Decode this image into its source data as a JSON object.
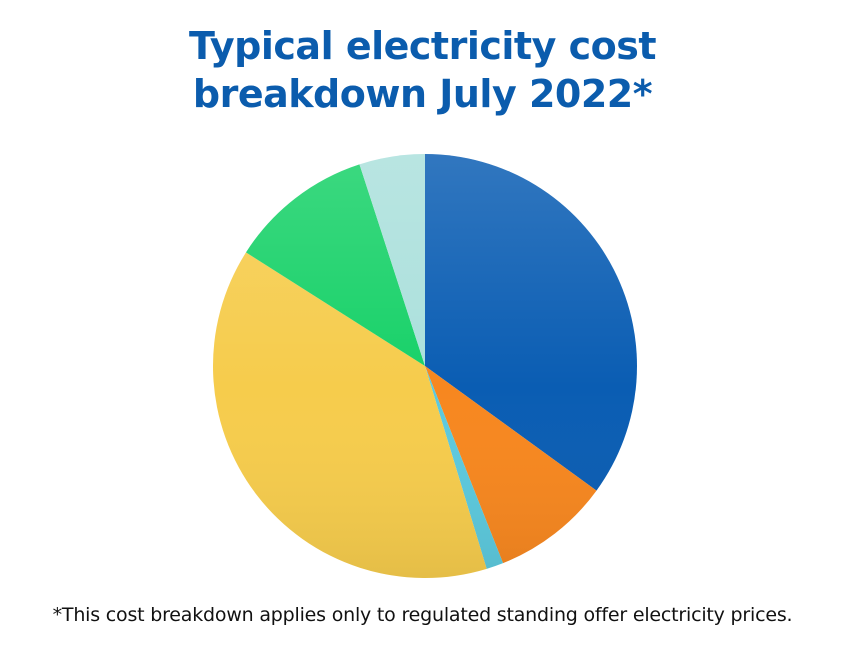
{
  "chart_data": {
    "type": "pie",
    "title_lines": [
      "Typical electricity cost",
      "breakdown July 2022*"
    ],
    "footnote": "*This cost breakdown applies only to regulated standing offer electricity prices.",
    "start": "12 o'clock",
    "direction": "clockwise",
    "values": [
      35.0,
      9.0,
      1.3,
      38.7,
      11.0,
      5.0
    ],
    "colors": [
      "#0a5db3",
      "#f7871f",
      "#5cc9dd",
      "#f6cc4c",
      "#17d168",
      "#abe0dc"
    ]
  }
}
